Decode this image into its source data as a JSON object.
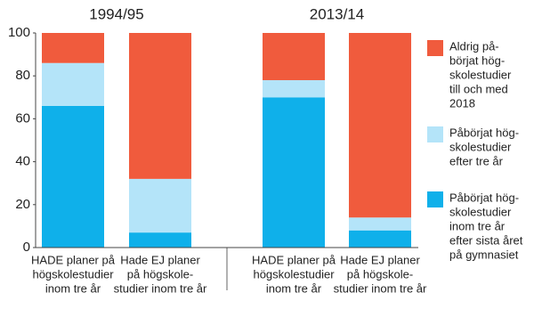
{
  "chart_data": {
    "type": "stacked-bar",
    "groups": [
      "1994/95",
      "2013/14"
    ],
    "categories": [
      [
        "HADE planer på",
        "högskolestudier",
        "inom tre år"
      ],
      [
        "Hade EJ planer",
        "på högskole-",
        "studier inom tre år"
      ],
      [
        "HADE planer på",
        "högskolestudier",
        "inom tre år"
      ],
      [
        "Hade EJ planer",
        "på högskole-",
        "studier inom tre år"
      ]
    ],
    "series": [
      {
        "name": [
          "Påbörjat hög-",
          "skolestudier",
          "inom tre år",
          "efter sista året",
          "på gymnasiet"
        ],
        "color": "#0fb0ea",
        "values": [
          66,
          7,
          70,
          8
        ]
      },
      {
        "name": [
          "Påbörjat hög-",
          "skolestudier",
          "efter tre år"
        ],
        "color": "#b4e4f9",
        "values": [
          20,
          25,
          8,
          6
        ]
      },
      {
        "name": [
          "Aldrig på-",
          "börjat hög-",
          "skolestudier",
          "till och med",
          "2018"
        ],
        "color": "#f05b3d",
        "values": [
          14,
          68,
          22,
          86
        ]
      }
    ],
    "ylim": [
      0,
      100
    ],
    "yticks": [
      0,
      20,
      40,
      60,
      80,
      100
    ],
    "grid": false
  }
}
